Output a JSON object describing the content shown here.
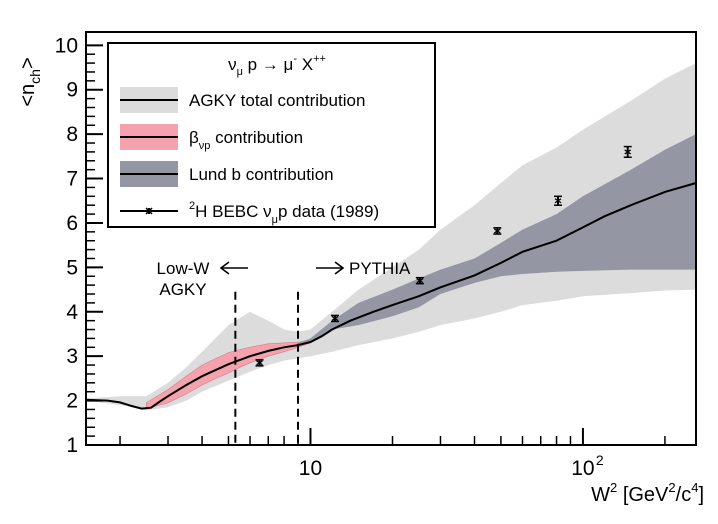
{
  "chart_data": {
    "type": "line",
    "x_scale": "log",
    "xlim": [
      1.5,
      260
    ],
    "ylim": [
      1,
      10.3
    ],
    "x_major_ticks": [
      {
        "value": 10,
        "label": "10"
      },
      {
        "value": 100,
        "label": "10",
        "exponent": "2"
      }
    ],
    "y_ticks": [
      1,
      2,
      3,
      4,
      5,
      6,
      7,
      8,
      9,
      10
    ],
    "xlabel": {
      "base": "W",
      "sup1": "2",
      "unit_a": " [GeV",
      "sup2": "2",
      "unit_b": "/c",
      "sup3": "4",
      "unit_c": "]"
    },
    "ylabel": {
      "open": "<n",
      "sub": "ch",
      "close": ">"
    },
    "legend": {
      "position": "top-left",
      "header": {
        "nu": "ν",
        "nu_sub": "μ",
        "mid": " p → μ",
        "mu_sup": "-",
        "end": " X",
        "end_sup": "++"
      },
      "entries": [
        {
          "key": "agky",
          "text": "AGKY total contribution"
        },
        {
          "key": "beta",
          "symbol": "β",
          "sub": "νp",
          "text": " contribution"
        },
        {
          "key": "lund",
          "text": "Lund b contribution"
        },
        {
          "key": "data",
          "sup": "2",
          "text_a": "H BEBC ν",
          "sub": "μ",
          "text_b": "p data (1989)"
        }
      ]
    },
    "annotations": {
      "low_w_line1": "Low-W",
      "low_w_line2": "AGKY",
      "pythia": "PYTHIA",
      "boundary_lines": [
        5.3,
        9.0
      ]
    },
    "series": {
      "central": [
        [
          1.5,
          2.02
        ],
        [
          1.8,
          2.0
        ],
        [
          2.0,
          1.96
        ],
        [
          2.2,
          1.88
        ],
        [
          2.4,
          1.82
        ],
        [
          2.6,
          1.84
        ],
        [
          2.8,
          1.98
        ],
        [
          3.0,
          2.1
        ],
        [
          3.5,
          2.35
        ],
        [
          4.0,
          2.55
        ],
        [
          5.0,
          2.82
        ],
        [
          6.0,
          3.0
        ],
        [
          7.0,
          3.12
        ],
        [
          8.0,
          3.2
        ],
        [
          9.0,
          3.25
        ],
        [
          10.0,
          3.32
        ],
        [
          11.0,
          3.45
        ],
        [
          12.0,
          3.6
        ],
        [
          14.0,
          3.8
        ],
        [
          17.0,
          4.0
        ],
        [
          20.0,
          4.15
        ],
        [
          25.0,
          4.35
        ],
        [
          30.0,
          4.55
        ],
        [
          40.0,
          4.82
        ],
        [
          50.0,
          5.1
        ],
        [
          60.0,
          5.35
        ],
        [
          80.0,
          5.6
        ],
        [
          100.0,
          5.9
        ],
        [
          120.0,
          6.15
        ],
        [
          150.0,
          6.4
        ],
        [
          200.0,
          6.7
        ],
        [
          260.0,
          6.9
        ]
      ],
      "agky_band": {
        "x": [
          1.5,
          2.0,
          2.5,
          3.0,
          3.5,
          4.0,
          5.0,
          6.0,
          7.0,
          8.0,
          9.0,
          10.0,
          12.0,
          15.0,
          20.0,
          25.0,
          30.0,
          40.0,
          50.0,
          60.0,
          80.0,
          100.0,
          150.0,
          200.0,
          260.0
        ],
        "low": [
          2.0,
          1.9,
          1.78,
          1.85,
          2.0,
          2.2,
          2.45,
          2.65,
          2.8,
          2.9,
          2.95,
          3.0,
          3.1,
          3.25,
          3.4,
          3.55,
          3.7,
          3.85,
          4.0,
          4.15,
          4.25,
          4.35,
          4.42,
          4.48,
          4.5
        ],
        "high": [
          2.05,
          2.1,
          2.1,
          2.4,
          2.75,
          3.1,
          3.7,
          4.0,
          3.8,
          3.6,
          3.55,
          3.6,
          4.0,
          4.5,
          5.0,
          5.4,
          5.85,
          6.4,
          6.9,
          7.3,
          7.7,
          8.1,
          8.75,
          9.25,
          9.6
        ]
      },
      "beta_band": {
        "x": [
          2.5,
          3.0,
          3.5,
          4.0,
          4.5,
          5.0,
          5.5,
          6.0,
          7.0,
          8.0,
          9.0,
          10.0
        ],
        "low": [
          1.82,
          1.95,
          2.15,
          2.35,
          2.5,
          2.62,
          2.75,
          2.85,
          3.0,
          3.1,
          3.2,
          3.3
        ],
        "high": [
          1.95,
          2.25,
          2.55,
          2.8,
          2.95,
          3.08,
          3.15,
          3.2,
          3.28,
          3.3,
          3.32,
          3.35
        ]
      },
      "lund_band": {
        "x": [
          9.0,
          10.0,
          12.0,
          15.0,
          20.0,
          25.0,
          30.0,
          40.0,
          50.0,
          60.0,
          80.0,
          100.0,
          150.0,
          200.0,
          260.0
        ],
        "low": [
          3.25,
          3.3,
          3.6,
          3.7,
          3.9,
          4.1,
          4.4,
          4.65,
          4.8,
          4.85,
          4.9,
          4.92,
          4.95,
          4.95,
          4.95
        ],
        "high": [
          3.3,
          3.4,
          3.8,
          4.2,
          4.5,
          4.75,
          4.95,
          5.2,
          5.55,
          5.85,
          6.2,
          6.6,
          7.2,
          7.65,
          8.0
        ]
      },
      "data_points": [
        {
          "x": 6.5,
          "y": 2.85,
          "err": 0.05
        },
        {
          "x": 12.3,
          "y": 3.85,
          "err": 0.05
        },
        {
          "x": 25.2,
          "y": 4.7,
          "err": 0.05
        },
        {
          "x": 48.5,
          "y": 5.82,
          "err": 0.07
        },
        {
          "x": 81.0,
          "y": 6.5,
          "err": 0.1
        },
        {
          "x": 146.0,
          "y": 7.6,
          "err": 0.12
        }
      ]
    },
    "colors": {
      "agky_band": "#dcdcdc",
      "beta_band": "#f4a3ae",
      "beta_band_dark": "#d77a88",
      "lund_band": "#9496a3",
      "line": "#000000"
    }
  }
}
